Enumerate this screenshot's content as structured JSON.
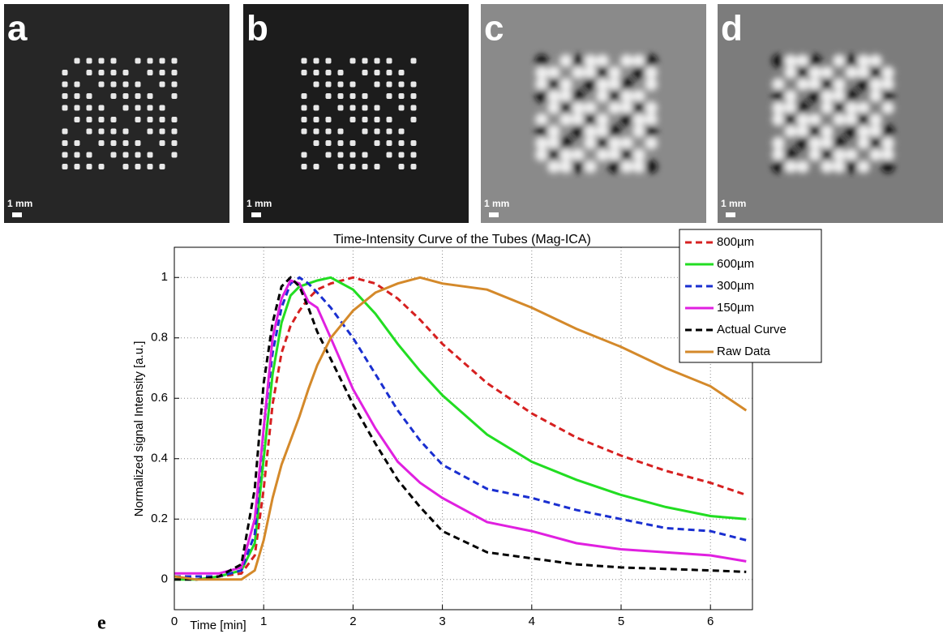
{
  "figure": {
    "panels": [
      {
        "label": "a",
        "scale": "1 mm"
      },
      {
        "label": "b",
        "scale": "1 mm"
      },
      {
        "label": "c",
        "scale": "1 mm"
      },
      {
        "label": "d",
        "scale": "1 mm"
      }
    ],
    "chart_label": "e"
  },
  "chart_data": {
    "type": "line",
    "title": "Time-Intensity Curve of the Tubes (Mag-ICA)",
    "x_label": "Time [min]",
    "y_label": "Normalized signal Intensity [a.u.]",
    "x": [
      0,
      0.25,
      0.5,
      0.75,
      0.9,
      1.0,
      1.1,
      1.2,
      1.3,
      1.4,
      1.5,
      1.6,
      1.75,
      2.0,
      2.25,
      2.5,
      2.75,
      3.0,
      3.5,
      4.0,
      4.5,
      5.0,
      5.5,
      6.0,
      6.4
    ],
    "series": [
      {
        "name": "800µm",
        "color": "#d62020",
        "style": "dashed",
        "values": [
          0.01,
          0.01,
          0.01,
          0.02,
          0.08,
          0.3,
          0.58,
          0.75,
          0.84,
          0.89,
          0.93,
          0.96,
          0.98,
          1.0,
          0.98,
          0.93,
          0.86,
          0.78,
          0.65,
          0.55,
          0.47,
          0.41,
          0.36,
          0.32,
          0.28
        ]
      },
      {
        "name": "600µm",
        "color": "#22dd22",
        "style": "solid",
        "values": [
          0,
          0,
          0.01,
          0.03,
          0.12,
          0.4,
          0.68,
          0.85,
          0.94,
          0.97,
          0.98,
          0.99,
          1.0,
          0.96,
          0.88,
          0.78,
          0.69,
          0.61,
          0.48,
          0.39,
          0.33,
          0.28,
          0.24,
          0.21,
          0.2
        ]
      },
      {
        "name": "300µm",
        "color": "#1a2fd0",
        "style": "dashed",
        "values": [
          0.01,
          0.01,
          0.01,
          0.03,
          0.15,
          0.5,
          0.75,
          0.9,
          0.98,
          1.0,
          0.98,
          0.95,
          0.9,
          0.8,
          0.68,
          0.56,
          0.46,
          0.38,
          0.3,
          0.27,
          0.23,
          0.2,
          0.17,
          0.16,
          0.13
        ]
      },
      {
        "name": "150µm",
        "color": "#e020e0",
        "style": "solid",
        "values": [
          0.02,
          0.02,
          0.02,
          0.04,
          0.2,
          0.5,
          0.8,
          0.93,
          0.99,
          0.98,
          0.92,
          0.9,
          0.8,
          0.63,
          0.5,
          0.39,
          0.32,
          0.27,
          0.19,
          0.16,
          0.12,
          0.1,
          0.09,
          0.08,
          0.06
        ]
      },
      {
        "name": "Actual Curve",
        "color": "#000000",
        "style": "dashed",
        "values": [
          0,
          0,
          0.01,
          0.05,
          0.3,
          0.65,
          0.85,
          0.97,
          1.0,
          0.97,
          0.9,
          0.82,
          0.73,
          0.58,
          0.45,
          0.33,
          0.24,
          0.16,
          0.09,
          0.07,
          0.05,
          0.04,
          0.035,
          0.03,
          0.025
        ]
      },
      {
        "name": "Raw Data",
        "color": "#d4892a",
        "style": "solid",
        "values": [
          0.01,
          0,
          0,
          0,
          0.03,
          0.13,
          0.27,
          0.38,
          0.46,
          0.54,
          0.63,
          0.71,
          0.8,
          0.89,
          0.95,
          0.98,
          1.0,
          0.98,
          0.96,
          0.9,
          0.83,
          0.77,
          0.7,
          0.64,
          0.56
        ]
      }
    ],
    "xlim": [
      0,
      6.47
    ],
    "ylim": [
      -0.1,
      1.1
    ],
    "xticks": [
      0,
      1,
      2,
      3,
      4,
      5,
      6
    ],
    "yticks": [
      0,
      0.2,
      0.4,
      0.6,
      0.8,
      1
    ],
    "grid": true,
    "legend": "upper right"
  }
}
